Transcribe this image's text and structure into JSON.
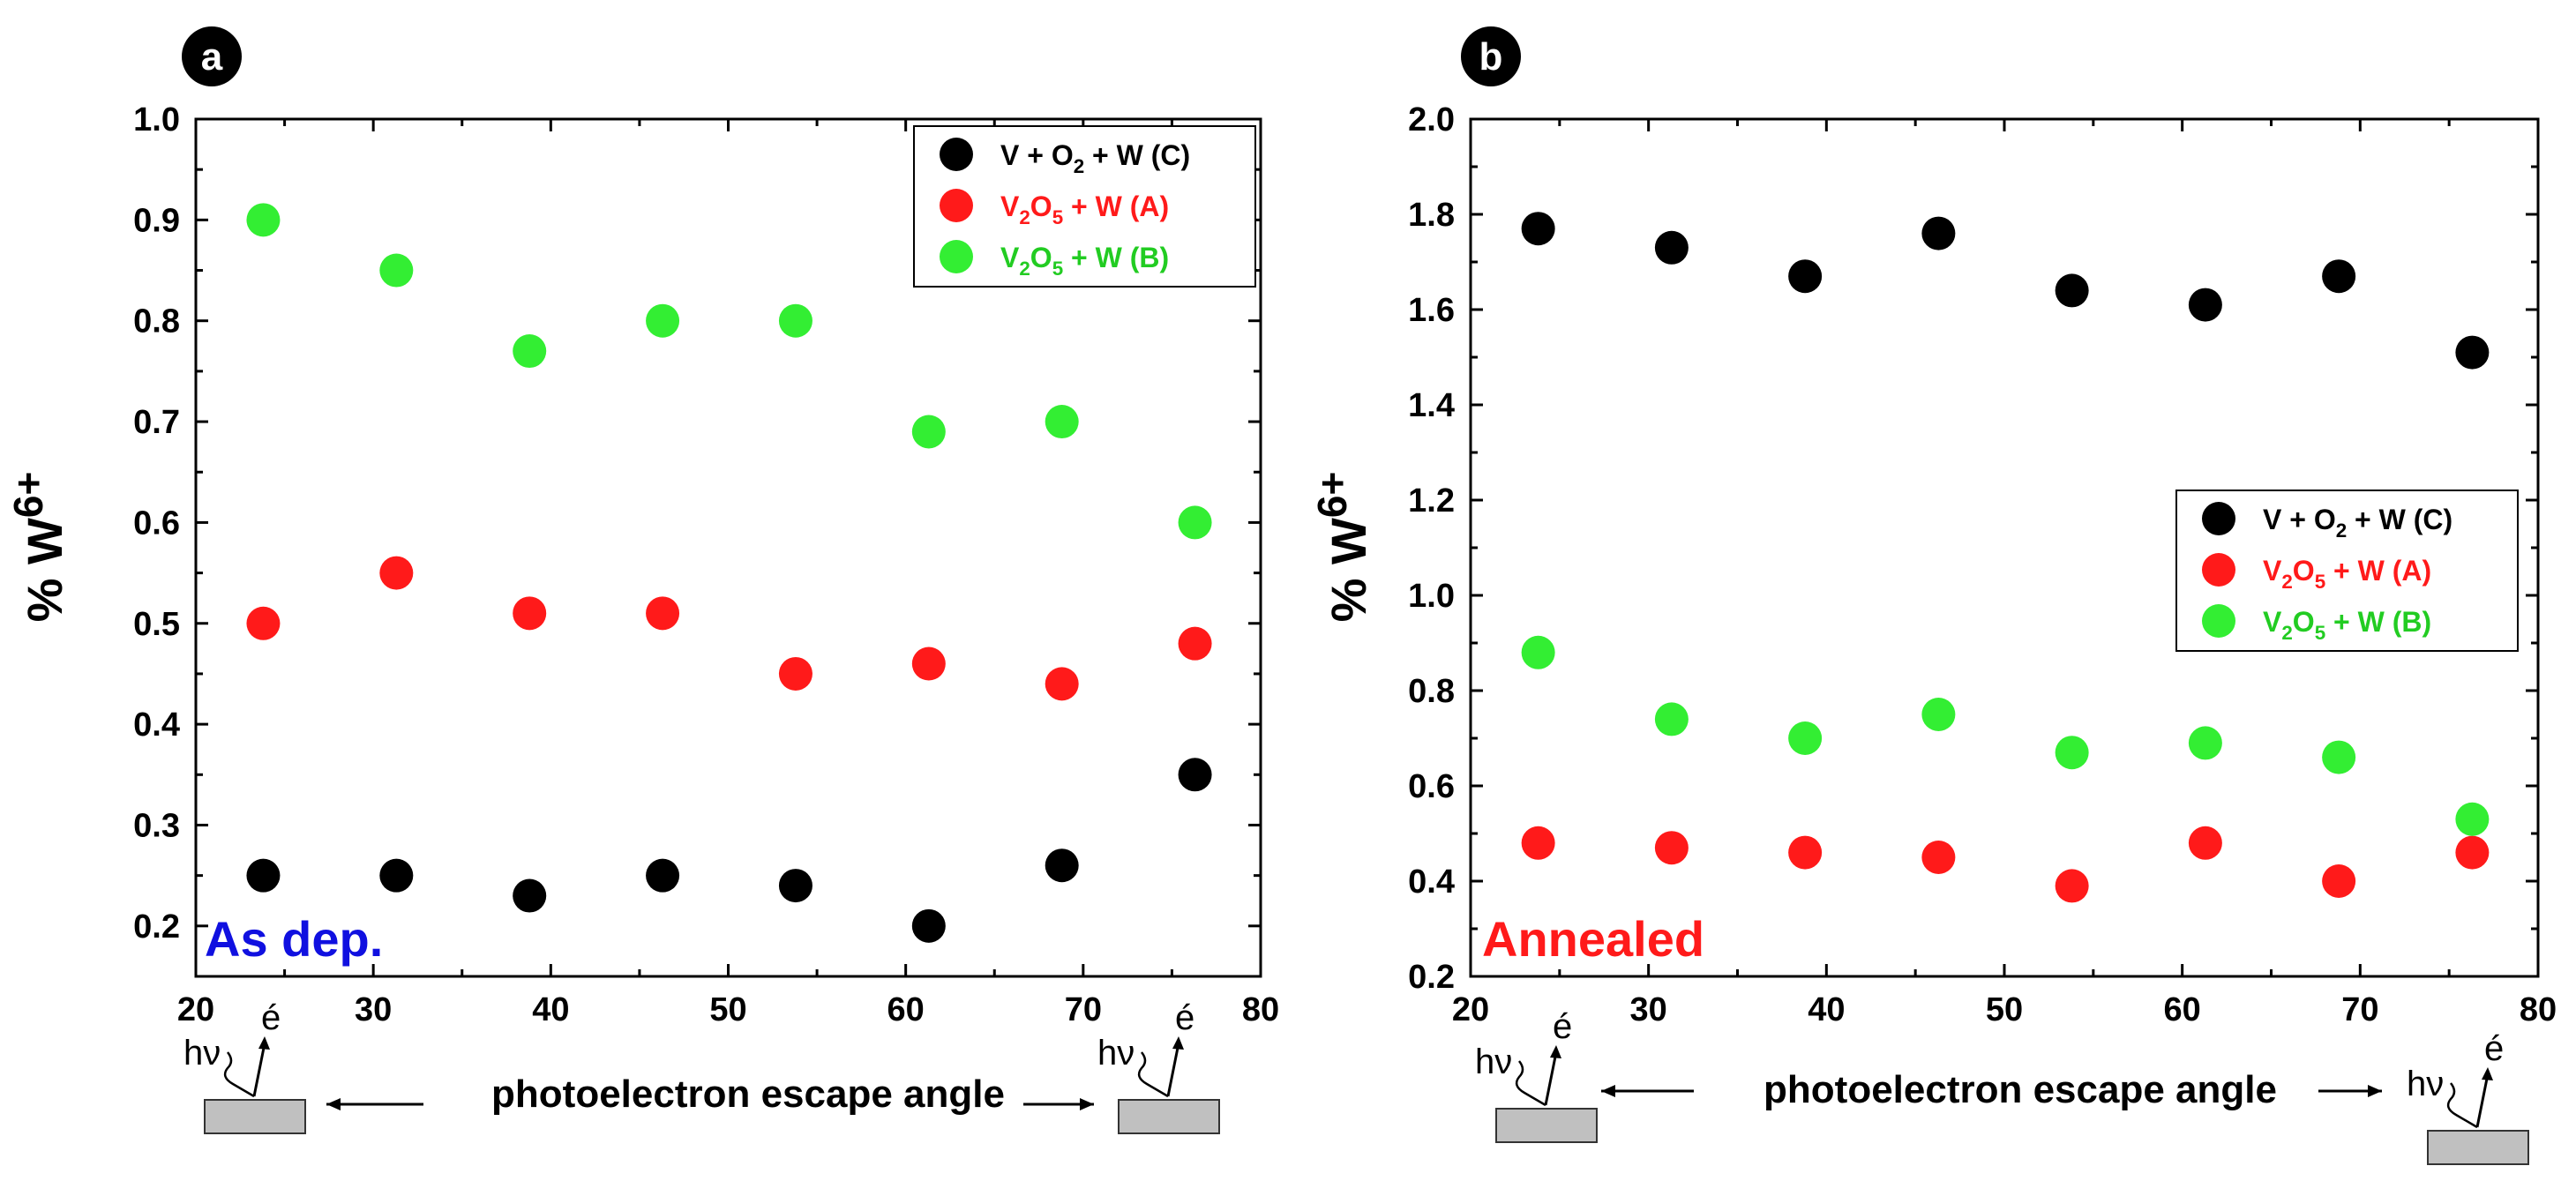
{
  "chart_data": [
    {
      "type": "scatter",
      "panel_label": "a",
      "annotation": "As dep.",
      "annotation_color": "#1010e0",
      "xlabel": "photoelectron escape angle",
      "ylabel": "% W",
      "ylabel_sup": "6+",
      "xlim": [
        20,
        80
      ],
      "ylim": [
        0.15,
        1.0
      ],
      "xticks": [
        20,
        30,
        40,
        50,
        60,
        70,
        80
      ],
      "yticks": [
        0.2,
        0.3,
        0.4,
        0.5,
        0.6,
        0.7,
        0.8,
        0.9,
        1.0
      ],
      "ytick_labels": [
        "0.2",
        "0.3",
        "0.4",
        "0.5",
        "0.6",
        "0.7",
        "0.8",
        "0.9",
        "1.0"
      ],
      "legend_position": "top-right",
      "x": [
        23.8,
        31.3,
        38.8,
        46.3,
        53.8,
        61.3,
        68.8,
        76.3
      ],
      "series": [
        {
          "name": "V + O₂ + W (C)",
          "color": "#000000",
          "label_color": "#000000",
          "values": [
            0.25,
            0.25,
            0.23,
            0.25,
            0.24,
            0.2,
            0.26,
            0.35
          ]
        },
        {
          "name": "V₂O₅ + W (A)",
          "color": "#ff1a1a",
          "label_color": "#ff1a1a",
          "values": [
            0.5,
            0.55,
            0.51,
            0.51,
            0.45,
            0.46,
            0.44,
            0.48
          ]
        },
        {
          "name": "V₂O₅ + W (B)",
          "color": "#33ee33",
          "label_color": "#22cc22",
          "values": [
            0.9,
            0.85,
            0.77,
            0.8,
            0.8,
            0.69,
            0.7,
            0.6
          ]
        }
      ]
    },
    {
      "type": "scatter",
      "panel_label": "b",
      "annotation": "Annealed",
      "annotation_color": "#ff1a1a",
      "xlabel": "photoelectron escape angle",
      "ylabel": "% W",
      "ylabel_sup": "6+",
      "xlim": [
        20,
        80
      ],
      "ylim": [
        0.2,
        2.0
      ],
      "xticks": [
        20,
        30,
        40,
        50,
        60,
        70,
        80
      ],
      "yticks": [
        0.2,
        0.4,
        0.6,
        0.8,
        1.0,
        1.2,
        1.4,
        1.6,
        1.8,
        2.0
      ],
      "ytick_labels": [
        "0.2",
        "0.4",
        "0.6",
        "0.8",
        "1.0",
        "1.2",
        "1.4",
        "1.6",
        "1.8",
        "2.0"
      ],
      "legend_position": "center-right",
      "x": [
        23.8,
        31.3,
        38.8,
        46.3,
        53.8,
        61.3,
        68.8,
        76.3
      ],
      "series": [
        {
          "name": "V + O₂ + W (C)",
          "color": "#000000",
          "label_color": "#000000",
          "values": [
            1.77,
            1.73,
            1.67,
            1.76,
            1.64,
            1.61,
            1.67,
            1.51
          ]
        },
        {
          "name": "V₂O₅ + W (A)",
          "color": "#ff1a1a",
          "label_color": "#ff1a1a",
          "values": [
            0.48,
            0.47,
            0.46,
            0.45,
            0.39,
            0.48,
            0.4,
            0.46
          ]
        },
        {
          "name": "V₂O₅ + W (B)",
          "color": "#33ee33",
          "label_color": "#22cc22",
          "values": [
            0.88,
            0.74,
            0.7,
            0.75,
            0.67,
            0.69,
            0.66,
            0.53
          ]
        }
      ]
    }
  ],
  "schematic": {
    "photon_label": "hν",
    "electron_label": "é"
  }
}
